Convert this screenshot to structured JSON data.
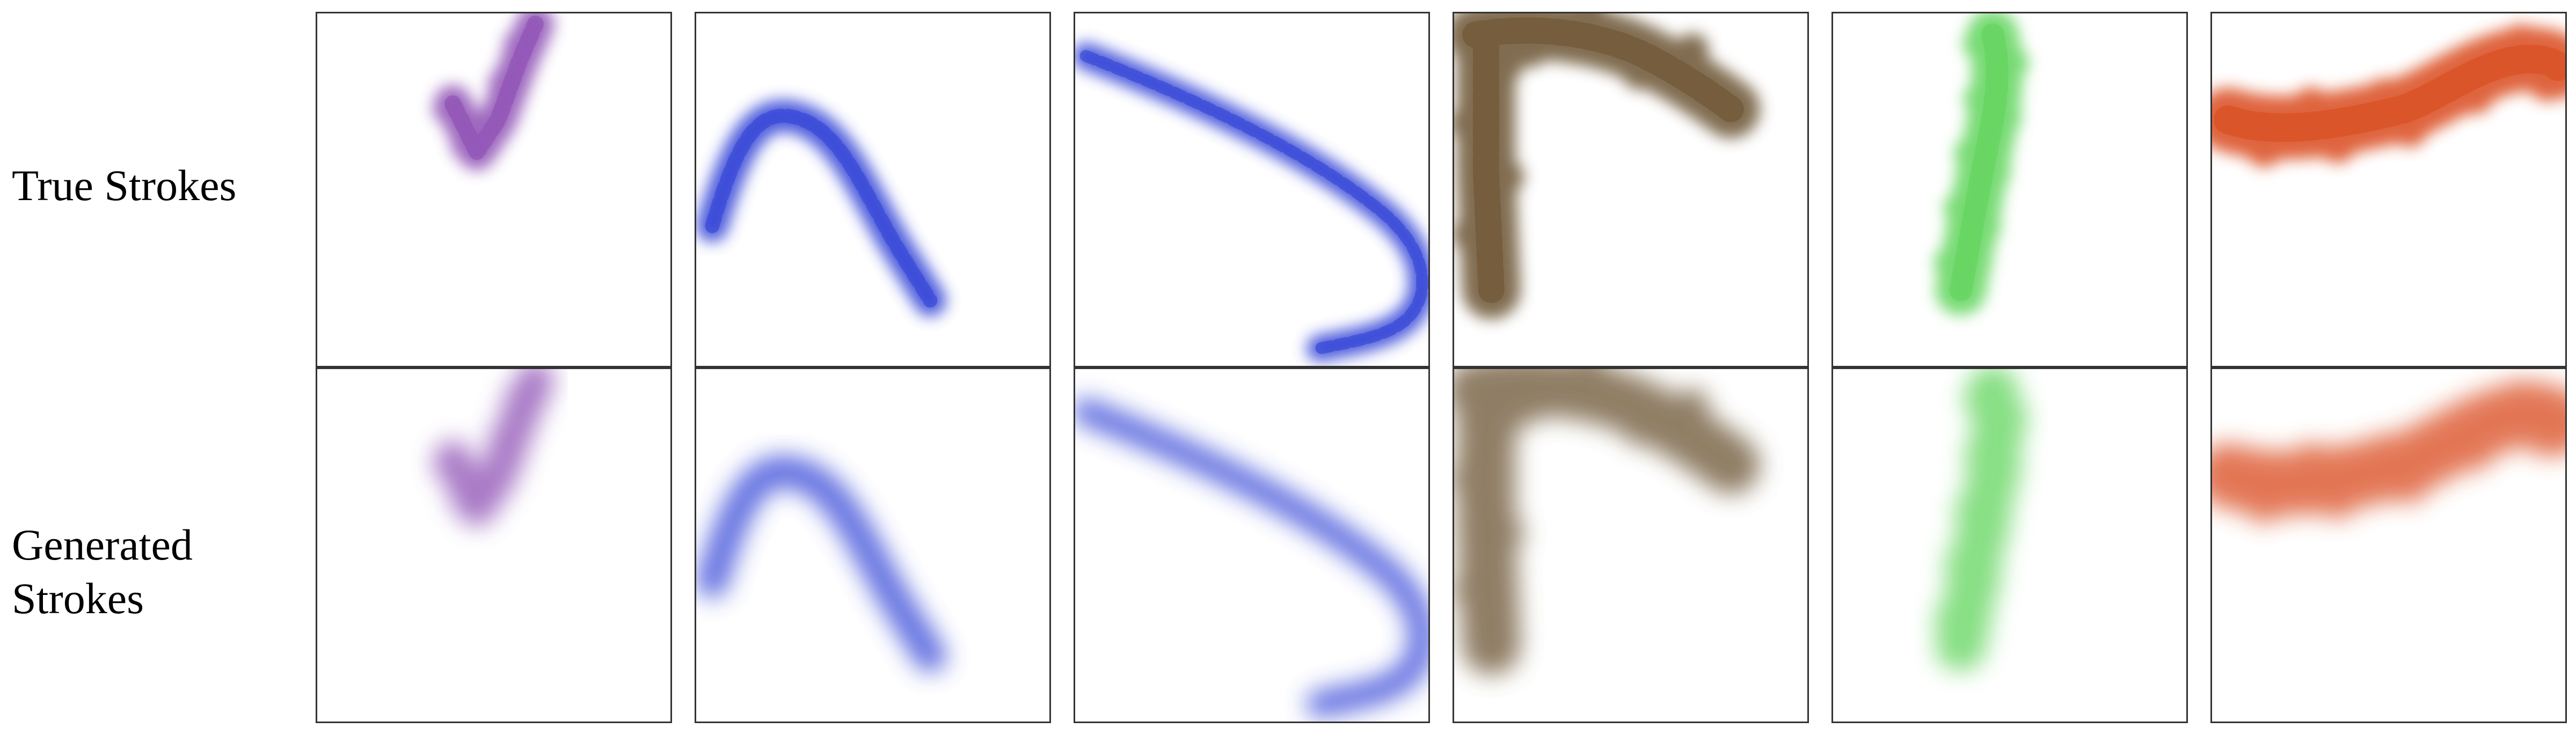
{
  "figure": {
    "rows": [
      {
        "label": "True Strokes",
        "variant": "true"
      },
      {
        "label": "Generated Strokes",
        "variant": "generated"
      }
    ],
    "columns": [
      {
        "stroke": "check-mark stroke",
        "color": "#8c4db3"
      },
      {
        "stroke": "arc stroke",
        "color": "#2e3fd6"
      },
      {
        "stroke": "long curve stroke",
        "color": "#2e3fd6"
      },
      {
        "stroke": "corner blotch stroke",
        "color": "#6b5230"
      },
      {
        "stroke": "vertical stroke",
        "color": "#5fd45a"
      },
      {
        "stroke": "horizontal stroke",
        "color": "#d9481e"
      }
    ]
  }
}
